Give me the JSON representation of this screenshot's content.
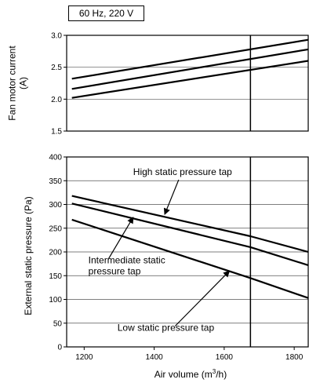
{
  "condition_label": "60 Hz, 220 V",
  "chart_data": [
    {
      "type": "line",
      "ylabel": "Fan motor current (A)",
      "ylabel_lines": [
        "Fan motor current",
        "(A)"
      ],
      "xlim": [
        1150,
        1840
      ],
      "ylim": [
        1.5,
        3.0
      ],
      "yticks": [
        1.5,
        2.0,
        2.5,
        3.0
      ],
      "ytick_labels": [
        "1.5",
        "2.0",
        "2.5",
        "3.0"
      ],
      "grid": true,
      "vline_x": 1675,
      "series": [
        {
          "x": [
            1165,
            1840
          ],
          "y": [
            2.32,
            2.93
          ]
        },
        {
          "x": [
            1165,
            1840
          ],
          "y": [
            2.16,
            2.78
          ]
        },
        {
          "x": [
            1165,
            1840
          ],
          "y": [
            2.02,
            2.6
          ]
        }
      ]
    },
    {
      "type": "line",
      "xlabel": "Air volume (m3/h)",
      "xlabel_main": "Air volume (m",
      "xlabel_sup": "3",
      "xlabel_end": "/h)",
      "ylabel": "External static pressure (Pa)",
      "xlim": [
        1150,
        1840
      ],
      "ylim": [
        0,
        400
      ],
      "xticks": [
        1200,
        1400,
        1600,
        1800
      ],
      "xtick_labels": [
        "1200",
        "1400",
        "1600",
        "1800"
      ],
      "yticks": [
        0,
        50,
        100,
        150,
        200,
        250,
        300,
        350,
        400
      ],
      "ytick_labels": [
        "0",
        "50",
        "100",
        "150",
        "200",
        "250",
        "300",
        "350",
        "400"
      ],
      "grid": true,
      "vline_x": 1675,
      "series": [
        {
          "name": "High static pressure tap",
          "x": [
            1165,
            1675,
            1840
          ],
          "y": [
            318,
            233,
            200
          ]
        },
        {
          "name": "Intermediate static pressure tap",
          "x": [
            1165,
            1675,
            1840
          ],
          "y": [
            302,
            210,
            172
          ]
        },
        {
          "name": "Low static pressure tap",
          "x": [
            1165,
            1675,
            1840
          ],
          "y": [
            268,
            145,
            103
          ]
        }
      ],
      "annotations": [
        {
          "lines": [
            "High static pressure tap"
          ],
          "text_x": 1340,
          "text_y": 362,
          "arrow_from": [
            1470,
            352
          ],
          "arrow_to": [
            1430,
            279
          ]
        },
        {
          "lines": [
            "Intermediate static",
            "pressure tap"
          ],
          "text_x": 1212,
          "text_y": 176,
          "arrow_from": [
            1270,
            186
          ],
          "arrow_to": [
            1340,
            273
          ]
        },
        {
          "lines": [
            "Low static pressure tap"
          ],
          "text_x": 1295,
          "text_y": 34,
          "arrow_from": [
            1460,
            44
          ],
          "arrow_to": [
            1615,
            160
          ]
        }
      ]
    }
  ]
}
